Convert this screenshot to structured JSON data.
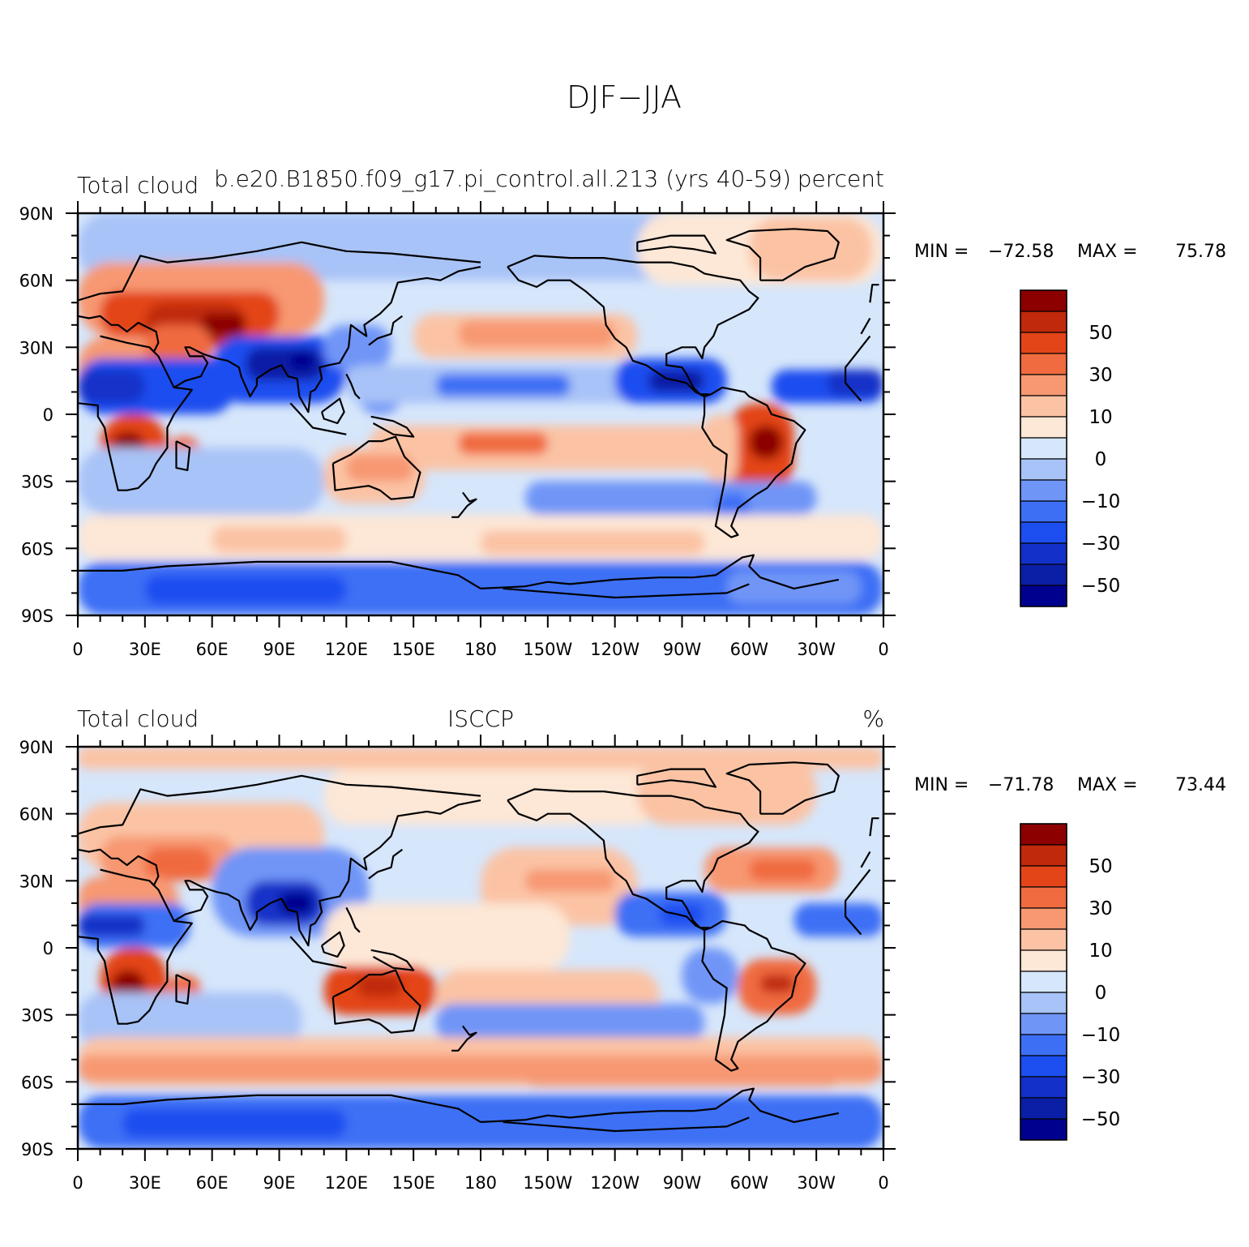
{
  "figure": {
    "title": "DJF−JJA",
    "palette": [
      "#00008f",
      "#0a1fa6",
      "#1331c8",
      "#1c4ef0",
      "#3d6ff5",
      "#6f95f7",
      "#a8c3f7",
      "#d6e6fb",
      "#fde7d6",
      "#fbc3a4",
      "#f79872",
      "#f06b3f",
      "#e34418",
      "#c0290a",
      "#8c0000"
    ]
  },
  "chart_data": [
    {
      "type": "heatmap",
      "panel_id": "top",
      "title_left": "Total cloud",
      "title_center": "b.e20.B1850.f09_g17.pi_control.all.213 (yrs 40-59)",
      "title_right": "percent",
      "x_tick_labels": [
        "0",
        "30E",
        "60E",
        "90E",
        "120E",
        "150E",
        "180",
        "150W",
        "120W",
        "90W",
        "60W",
        "30W",
        "0"
      ],
      "y_tick_labels": [
        "90N",
        "60N",
        "30N",
        "0",
        "30S",
        "60S",
        "90S"
      ],
      "xlim": [
        0,
        360
      ],
      "ylim": [
        -90,
        90
      ],
      "stats": {
        "min_label": "MIN =",
        "min": "−72.58",
        "max_label": "MAX =",
        "max": "75.78"
      },
      "colorbar_levels": [
        -60,
        -50,
        -40,
        -30,
        -20,
        -10,
        -5,
        0,
        5,
        10,
        20,
        30,
        40,
        50,
        60
      ],
      "colorbar_labels": [
        "50",
        "30",
        "10",
        "0",
        "−10",
        "−30",
        "−50"
      ]
    },
    {
      "type": "heatmap",
      "panel_id": "bottom",
      "title_left": "Total cloud",
      "title_center": "ISCCP",
      "title_right": "%",
      "x_tick_labels": [
        "0",
        "30E",
        "60E",
        "90E",
        "120E",
        "150E",
        "180",
        "150W",
        "120W",
        "90W",
        "60W",
        "30W",
        "0"
      ],
      "y_tick_labels": [
        "90N",
        "60N",
        "30N",
        "0",
        "30S",
        "60S",
        "90S"
      ],
      "xlim": [
        0,
        360
      ],
      "ylim": [
        -90,
        90
      ],
      "stats": {
        "min_label": "MIN =",
        "min": "−71.78",
        "max_label": "MAX =",
        "max": "73.44"
      },
      "colorbar_levels": [
        -60,
        -50,
        -40,
        -30,
        -20,
        -10,
        -5,
        0,
        5,
        10,
        20,
        30,
        40,
        50,
        60
      ],
      "colorbar_labels": [
        "50",
        "30",
        "10",
        "0",
        "−10",
        "−30",
        "−50"
      ]
    }
  ]
}
